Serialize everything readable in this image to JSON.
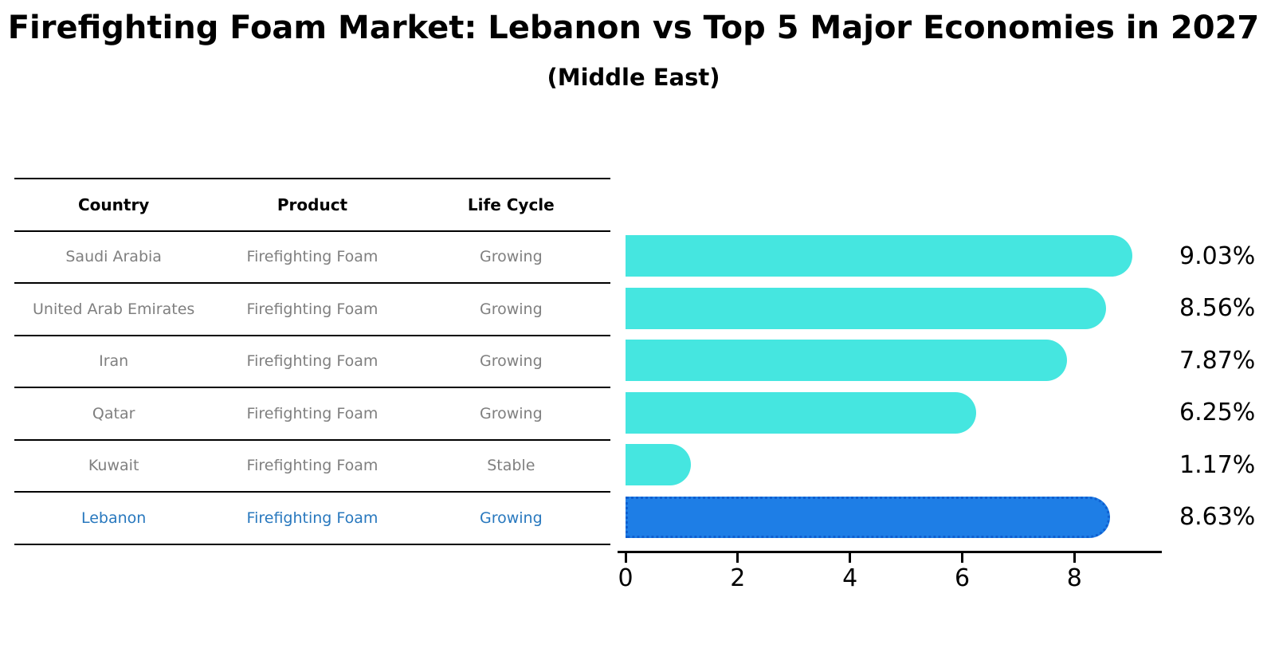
{
  "title": "Firefighting Foam Market: Lebanon vs Top 5 Major Economies in 2027",
  "subtitle": "(Middle East)",
  "table": {
    "headers": [
      "Country",
      "Product",
      "Life Cycle"
    ],
    "rows": [
      {
        "country": "Saudi Arabia",
        "product": "Firefighting Foam",
        "life_cycle": "Growing"
      },
      {
        "country": "United Arab Emirates",
        "product": "Firefighting Foam",
        "life_cycle": "Growing"
      },
      {
        "country": "Iran",
        "product": "Firefighting Foam",
        "life_cycle": "Growing"
      },
      {
        "country": "Qatar",
        "product": "Firefighting Foam",
        "life_cycle": "Growing"
      },
      {
        "country": "Kuwait",
        "product": "Firefighting Foam",
        "life_cycle": "Stable"
      },
      {
        "country": "Lebanon",
        "product": "Firefighting Foam",
        "life_cycle": "Growing"
      }
    ]
  },
  "chart_data": {
    "type": "bar",
    "orientation": "horizontal",
    "title": "Firefighting Foam Market: Lebanon vs Top 5 Major Economies in 2027",
    "subtitle": "(Middle East)",
    "categories": [
      "Saudi Arabia",
      "United Arab Emirates",
      "Iran",
      "Qatar",
      "Kuwait",
      "Lebanon"
    ],
    "values": [
      9.03,
      8.56,
      7.87,
      6.25,
      1.17,
      8.63
    ],
    "labels": [
      "9.03%",
      "8.56%",
      "7.87%",
      "6.25%",
      "1.17%",
      "8.63%"
    ],
    "xlabel": "",
    "ylabel": "",
    "xlim": [
      0,
      9.6
    ],
    "x_ticks": [
      0,
      2,
      4,
      6,
      8
    ],
    "grid": false,
    "legend": false,
    "highlight_index": 5
  },
  "colors": {
    "bar": "#45e6e0",
    "highlight_bar": "#1e7ee6",
    "highlight_border": "#0f5fd0",
    "row_text": "#7f7f7f",
    "highlight_text": "#2878be",
    "header_text": "#000000",
    "value_text": "#000000"
  }
}
